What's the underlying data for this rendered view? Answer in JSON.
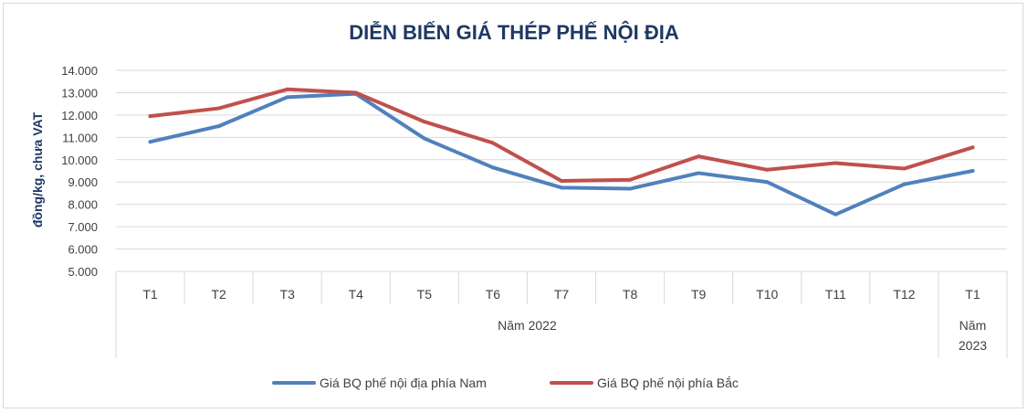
{
  "chart_data": {
    "type": "line",
    "title": "DIỄN BIẾN GIÁ THÉP PHẾ NỘI ĐỊA",
    "ylabel": "đồng/kg, chưa VAT",
    "xlabel": "",
    "ylim": [
      5000,
      14000
    ],
    "yticks": [
      5000,
      6000,
      7000,
      8000,
      9000,
      10000,
      11000,
      12000,
      13000,
      14000
    ],
    "ytick_labels": [
      "5.000",
      "6.000",
      "7.000",
      "8.000",
      "9.000",
      "10.000",
      "11.000",
      "12.000",
      "13.000",
      "14.000"
    ],
    "categories": [
      "T1",
      "T2",
      "T3",
      "T4",
      "T5",
      "T6",
      "T7",
      "T8",
      "T9",
      "T10",
      "T11",
      "T12",
      "T1"
    ],
    "groups": [
      {
        "label": "Năm 2022",
        "count": 12
      },
      {
        "label": "Năm 2023",
        "count": 1
      }
    ],
    "grid": true,
    "legend_position": "bottom",
    "series": [
      {
        "name": "Giá BQ phế nội địa phía Nam",
        "color": "#4f81bd",
        "values": [
          10800,
          11500,
          12800,
          12950,
          10950,
          9650,
          8750,
          8700,
          9400,
          9000,
          7550,
          8900,
          9500
        ]
      },
      {
        "name": "Giá BQ phế nội phía Bắc",
        "color": "#c0504d",
        "values": [
          11950,
          12300,
          13150,
          13000,
          11700,
          10750,
          9050,
          9100,
          10150,
          9550,
          9850,
          9600,
          10550
        ]
      }
    ]
  }
}
